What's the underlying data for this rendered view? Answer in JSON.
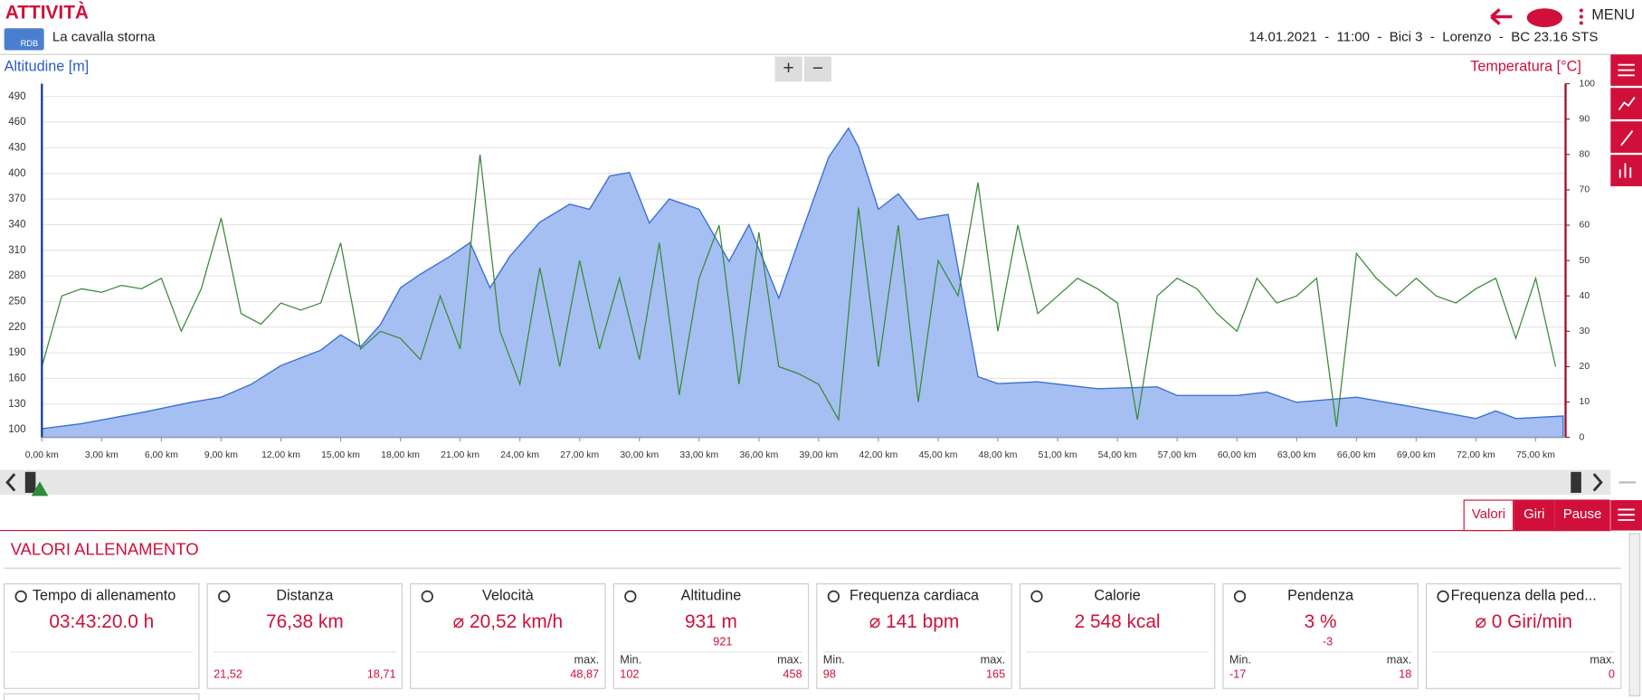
{
  "header": {
    "title": "ATTIVITÀ",
    "badge": "RDB",
    "activity": "La cavalla storna",
    "info": "14.01.2021  -  11:00  -  Bici 3  -  Lorenzo  -  BC 23.16 STS",
    "menu": "MENU"
  },
  "chart_data": {
    "type": "area-line",
    "y_label": "Altitudine [m]",
    "y2_label": "Temperatura [°C]",
    "zoom_in": "+",
    "zoom_out": "−",
    "xlim": [
      0,
      76.5
    ],
    "ylim": [
      91,
      505
    ],
    "y2lim": [
      0,
      100
    ],
    "xticks": [
      {
        "value": 0,
        "label": "0,00 km"
      },
      {
        "value": 3,
        "label": "3,00 km"
      },
      {
        "value": 6,
        "label": "6,00 km"
      },
      {
        "value": 9,
        "label": "9,00 km"
      },
      {
        "value": 12,
        "label": "12,00 km"
      },
      {
        "value": 15,
        "label": "15,00 km"
      },
      {
        "value": 18,
        "label": "18,00 km"
      },
      {
        "value": 21,
        "label": "21,00 km"
      },
      {
        "value": 24,
        "label": "24,00 km"
      },
      {
        "value": 27,
        "label": "27,00 km"
      },
      {
        "value": 30,
        "label": "30,00 km"
      },
      {
        "value": 33,
        "label": "33,00 km"
      },
      {
        "value": 36,
        "label": "36,00 km"
      },
      {
        "value": 39,
        "label": "39,00 km"
      },
      {
        "value": 42,
        "label": "42,00 km"
      },
      {
        "value": 45,
        "label": "45,00 km"
      },
      {
        "value": 48,
        "label": "48,00 km"
      },
      {
        "value": 51,
        "label": "51,00 km"
      },
      {
        "value": 54,
        "label": "54,00 km"
      },
      {
        "value": 57,
        "label": "57,00 km"
      },
      {
        "value": 60,
        "label": "60,00 km"
      },
      {
        "value": 63,
        "label": "63,00 km"
      },
      {
        "value": 66,
        "label": "66,00 km"
      },
      {
        "value": 69,
        "label": "69,00 km"
      },
      {
        "value": 72,
        "label": "72,00 km"
      },
      {
        "value": 75,
        "label": "75,00 km"
      }
    ],
    "yticks": [
      100,
      130,
      160,
      190,
      220,
      250,
      280,
      310,
      340,
      370,
      400,
      430,
      460,
      490
    ],
    "y2ticks": [
      0,
      10,
      20,
      30,
      40,
      50,
      60,
      70,
      80,
      90,
      100
    ],
    "grid": true,
    "series": [
      {
        "name": "Altitudine [m]",
        "color": "#3b6fd8",
        "fill": "#a6bff2",
        "x": [
          0,
          2,
          5,
          7.5,
          9,
          10.5,
          12,
          14,
          15,
          16,
          17,
          18,
          19,
          20.5,
          21.5,
          22.5,
          23.5,
          25,
          26.5,
          27.5,
          28.5,
          29.5,
          30.5,
          31.5,
          33,
          34.5,
          35.5,
          37,
          38,
          39.5,
          40.5,
          41,
          42,
          43,
          44,
          45.5,
          47,
          48,
          50,
          53,
          56,
          57,
          60,
          61.5,
          63,
          66,
          69,
          72,
          73,
          74,
          76.38
        ],
        "values": [
          101,
          107,
          120,
          132,
          138,
          153,
          175,
          193,
          211,
          197,
          223,
          266,
          282,
          303,
          319,
          266,
          303,
          343,
          364,
          358,
          397,
          401,
          342,
          370,
          358,
          297,
          340,
          254,
          321,
          419,
          453,
          431,
          358,
          376,
          346,
          352,
          162,
          154,
          156,
          148,
          150,
          140,
          140,
          144,
          132,
          138,
          126,
          113,
          122,
          113,
          116
        ]
      },
      {
        "name": "Temperatura [°C]",
        "color": "#3a8a3a",
        "axis": "y2",
        "x": [
          0,
          1,
          2,
          3,
          4,
          5,
          6,
          7,
          8,
          9,
          10,
          11,
          12,
          13,
          14,
          15,
          16,
          17,
          18,
          19,
          20,
          21,
          22,
          23,
          24,
          25,
          26,
          27,
          28,
          29,
          30,
          31,
          32,
          33,
          34,
          35,
          36,
          37,
          38,
          39,
          40,
          41,
          42,
          43,
          44,
          45,
          46,
          47,
          48,
          49,
          50,
          51,
          52,
          53,
          54,
          55,
          56,
          57,
          58,
          59,
          60,
          61,
          62,
          63,
          64,
          65,
          66,
          67,
          68,
          69,
          70,
          71,
          72,
          73,
          74,
          75,
          76
        ],
        "values": [
          20,
          40,
          42,
          41,
          43,
          42,
          45,
          30,
          42,
          62,
          35,
          32,
          38,
          36,
          38,
          55,
          25,
          30,
          28,
          22,
          40,
          25,
          80,
          30,
          15,
          48,
          20,
          50,
          25,
          45,
          22,
          55,
          12,
          45,
          60,
          15,
          58,
          20,
          18,
          15,
          5,
          65,
          20,
          60,
          10,
          50,
          40,
          72,
          30,
          60,
          35,
          40,
          45,
          42,
          38,
          5,
          40,
          45,
          42,
          35,
          30,
          45,
          38,
          40,
          45,
          3,
          52,
          45,
          40,
          45,
          40,
          38,
          42,
          45,
          28,
          45,
          20
        ]
      }
    ]
  },
  "tabs": [
    "Valori",
    "Giri",
    "Pause"
  ],
  "section_title": "VALORI ALLENAMENTO",
  "cards": [
    {
      "title": "Tempo di allenamento",
      "value": "03:43:20.0 h"
    },
    {
      "title": "Distanza",
      "value": "76,38 km",
      "foot_left": "21,52",
      "foot_right": "18,71"
    },
    {
      "title": "Velocità",
      "value": "⌀ 20,52 km/h",
      "foot_right_label": "max.",
      "foot_right": "48,87"
    },
    {
      "title": "Altitudine",
      "value": "931 m",
      "sub": "921",
      "foot_left_label": "Min.",
      "foot_left": "102",
      "foot_right_label": "max.",
      "foot_right": "458"
    },
    {
      "title": "Frequenza cardiaca",
      "value": "⌀ 141 bpm",
      "foot_left_label": "Min.",
      "foot_left": "98",
      "foot_right_label": "max.",
      "foot_right": "165"
    },
    {
      "title": "Calorie",
      "value": "2 548 kcal"
    },
    {
      "title": "Pendenza",
      "value": "3 %",
      "sub": "-3",
      "foot_left_label": "Min.",
      "foot_left": "-17",
      "foot_right_label": "max.",
      "foot_right": "18"
    },
    {
      "title": "Frequenza della ped...",
      "value": "⌀ 0 Giri/min",
      "foot_right_label": "max.",
      "foot_right": "0"
    }
  ]
}
